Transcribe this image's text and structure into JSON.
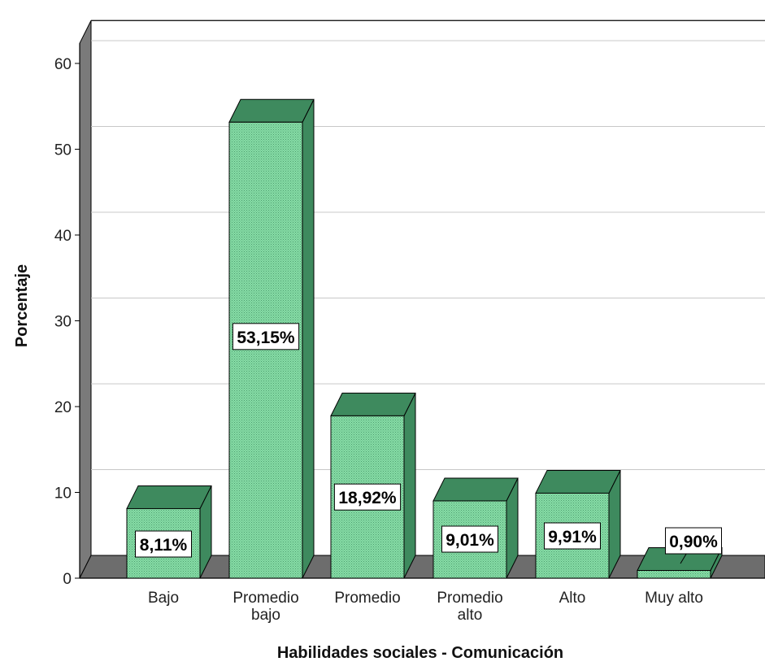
{
  "chart_data": {
    "type": "bar",
    "xlabel": "Habilidades sociales - Comunicación",
    "ylabel": "Porcentaje",
    "ylim": [
      0,
      65
    ],
    "yticks": [
      0,
      10,
      20,
      30,
      40,
      50,
      60
    ],
    "grid": true,
    "style": "3d",
    "categories": [
      [
        "Bajo"
      ],
      [
        "Promedio",
        "bajo"
      ],
      [
        "Promedio"
      ],
      [
        "Promedio",
        "alto"
      ],
      [
        "Alto"
      ],
      [
        "Muy alto"
      ]
    ],
    "values": [
      8.11,
      53.15,
      18.92,
      9.01,
      9.91,
      0.9
    ],
    "data_labels": [
      "8,11%",
      "53,15%",
      "18,92%",
      "9,01%",
      "9,91%",
      "0,90%"
    ],
    "colors": {
      "bar_front": "#7fd9a0",
      "bar_side": "#3e8a5e",
      "bar_top": "#3e8a5e",
      "wall": "#7a7a7a",
      "floor": "#6d6d6d",
      "grid": "#c8c8c8"
    }
  }
}
